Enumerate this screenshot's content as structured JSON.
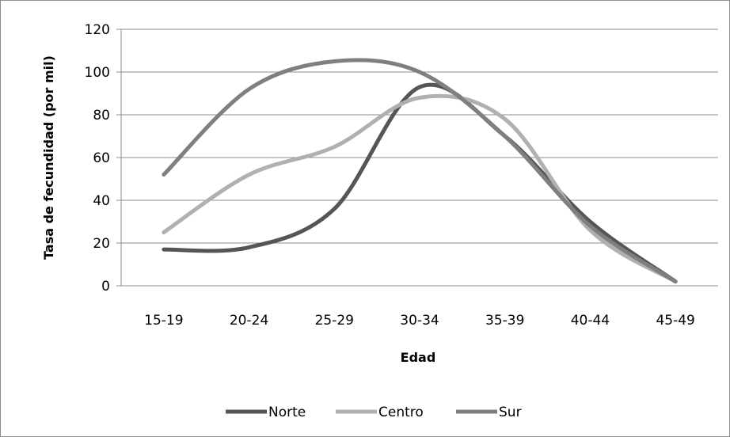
{
  "chart_data": {
    "type": "line",
    "categories": [
      "15-19",
      "20-24",
      "25-29",
      "30-34",
      "35-39",
      "40-44",
      "45-49"
    ],
    "series": [
      {
        "name": "Norte",
        "color": "#555555",
        "values": [
          17,
          18,
          36,
          93,
          70,
          30,
          2
        ]
      },
      {
        "name": "Centro",
        "color": "#b0b0b0",
        "values": [
          25,
          52,
          65,
          88,
          78,
          26,
          2
        ]
      },
      {
        "name": "Sur",
        "color": "#7f7f7f",
        "values": [
          52,
          92,
          105,
          100,
          70,
          28,
          2
        ]
      }
    ],
    "xlabel": "Edad",
    "ylabel": "Tasa de fecundidad  (por mil)",
    "ylim": [
      0,
      120
    ],
    "yticks": [
      "0",
      "20",
      "40",
      "60",
      "80",
      "100",
      "120"
    ],
    "grid": true,
    "legend": "bottom"
  }
}
